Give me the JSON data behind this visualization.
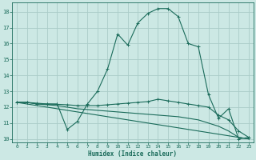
{
  "xlabel": "Humidex (Indice chaleur)",
  "background_color": "#cce8e4",
  "grid_color": "#aaccc8",
  "line_color": "#1a6b5a",
  "xlim": [
    -0.5,
    23.5
  ],
  "ylim": [
    9.8,
    18.6
  ],
  "xticks": [
    0,
    1,
    2,
    3,
    4,
    5,
    6,
    7,
    8,
    9,
    10,
    11,
    12,
    13,
    14,
    15,
    16,
    17,
    18,
    19,
    20,
    21,
    22,
    23
  ],
  "yticks": [
    10,
    11,
    12,
    13,
    14,
    15,
    16,
    17,
    18
  ],
  "curve1_x": [
    0,
    1,
    2,
    3,
    4,
    5,
    6,
    7,
    8,
    9,
    10,
    11,
    12,
    13,
    14,
    15,
    16,
    17,
    18,
    19,
    20,
    21,
    22,
    23
  ],
  "curve1_y": [
    12.3,
    12.3,
    12.2,
    12.2,
    12.2,
    10.6,
    11.1,
    12.2,
    13.0,
    14.4,
    16.6,
    15.9,
    17.3,
    17.9,
    18.2,
    18.2,
    17.7,
    16.0,
    15.8,
    12.8,
    11.3,
    11.9,
    10.0,
    10.1
  ],
  "curve2_x": [
    0,
    1,
    2,
    3,
    4,
    5,
    6,
    7,
    8,
    9,
    10,
    11,
    12,
    13,
    14,
    15,
    16,
    17,
    18,
    19,
    20,
    21,
    22,
    23
  ],
  "curve2_y": [
    12.3,
    12.3,
    12.25,
    12.2,
    12.18,
    12.15,
    12.1,
    12.1,
    12.1,
    12.15,
    12.2,
    12.25,
    12.3,
    12.35,
    12.5,
    12.4,
    12.3,
    12.2,
    12.1,
    12.0,
    11.5,
    11.2,
    10.5,
    10.1
  ],
  "curve3_x": [
    0,
    1,
    2,
    3,
    4,
    5,
    6,
    7,
    8,
    9,
    10,
    11,
    12,
    13,
    14,
    15,
    16,
    17,
    18,
    19,
    20,
    21,
    22,
    23
  ],
  "curve3_y": [
    12.3,
    12.3,
    12.2,
    12.15,
    12.1,
    12.0,
    11.9,
    11.85,
    11.8,
    11.75,
    11.7,
    11.65,
    11.6,
    11.55,
    11.5,
    11.45,
    11.4,
    11.3,
    11.2,
    11.0,
    10.8,
    10.5,
    10.1,
    10.0
  ],
  "curve4_x": [
    0,
    23
  ],
  "curve4_y": [
    12.3,
    10.0
  ]
}
